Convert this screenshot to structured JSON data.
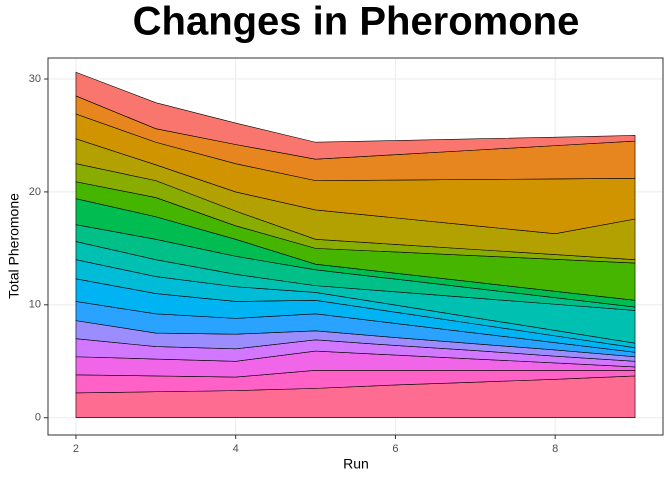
{
  "chart_data": {
    "type": "stacked_area",
    "title": "Changes in Pheromone",
    "x_label": "Run",
    "y_label": "Total Pheromone",
    "x": [
      2,
      3,
      4,
      5,
      6,
      7,
      8,
      9
    ],
    "series": [
      {
        "color": "#FF6C92",
        "values": [
          2.2,
          2.3,
          2.4,
          2.6,
          2.9,
          3.15,
          3.4,
          3.7
        ]
      },
      {
        "color": "#FF61C7",
        "values": [
          1.6,
          1.4,
          1.2,
          1.6,
          1.3,
          1.05,
          0.8,
          0.5
        ]
      },
      {
        "color": "#F166E8",
        "values": [
          1.6,
          1.5,
          1.4,
          1.7,
          1.35,
          1.0,
          0.65,
          0.3
        ]
      },
      {
        "color": "#D277FF",
        "values": [
          1.6,
          1.1,
          1.1,
          1.0,
          0.85,
          0.75,
          0.6,
          0.5
        ]
      },
      {
        "color": "#9C8DFF",
        "values": [
          1.6,
          1.2,
          1.3,
          0.8,
          0.7,
          0.6,
          0.55,
          0.4
        ]
      },
      {
        "color": "#29A3FF",
        "values": [
          1.7,
          1.7,
          1.4,
          1.5,
          1.25,
          0.95,
          0.65,
          0.4
        ]
      },
      {
        "color": "#00B3F2",
        "values": [
          2.0,
          1.8,
          1.5,
          1.2,
          1.0,
          0.8,
          0.6,
          0.4
        ]
      },
      {
        "color": "#00BCD6",
        "values": [
          1.7,
          1.5,
          1.3,
          0.7,
          0.63,
          0.55,
          0.48,
          0.4
        ]
      },
      {
        "color": "#00C0B2",
        "values": [
          1.6,
          1.5,
          1.1,
          0.6,
          1.17,
          1.75,
          2.32,
          2.9
        ]
      },
      {
        "color": "#00C087",
        "values": [
          1.5,
          1.8,
          1.6,
          1.4,
          1.13,
          0.85,
          0.58,
          0.3
        ]
      },
      {
        "color": "#00BC51",
        "values": [
          2.3,
          2.0,
          1.5,
          0.5,
          0.52,
          0.55,
          0.57,
          0.6
        ]
      },
      {
        "color": "#45B500",
        "values": [
          1.5,
          1.7,
          1.2,
          1.4,
          1.88,
          2.35,
          2.83,
          3.3
        ]
      },
      {
        "color": "#89AC00",
        "values": [
          1.6,
          1.5,
          1.3,
          0.8,
          0.67,
          0.55,
          0.42,
          0.3
        ]
      },
      {
        "color": "#B2A100",
        "values": [
          2.2,
          1.4,
          1.7,
          2.6,
          2.35,
          2.1,
          1.85,
          3.6
        ]
      },
      {
        "color": "#D09400",
        "values": [
          2.2,
          2.0,
          2.5,
          2.6,
          3.35,
          4.1,
          4.85,
          3.6
        ]
      },
      {
        "color": "#E7851E",
        "values": [
          1.6,
          1.2,
          1.7,
          1.9,
          2.25,
          2.6,
          2.95,
          3.3
        ]
      },
      {
        "color": "#F8766D",
        "values": [
          2.1,
          2.3,
          1.9,
          1.5,
          1.25,
          1.0,
          0.75,
          0.5
        ]
      }
    ],
    "xlim": [
      1.65,
      9.35
    ],
    "ylim": [
      -1.53,
      31.86
    ],
    "xticks": [
      2,
      4,
      6,
      8
    ],
    "yticks": [
      0,
      10,
      20,
      30
    ],
    "grid": true
  }
}
